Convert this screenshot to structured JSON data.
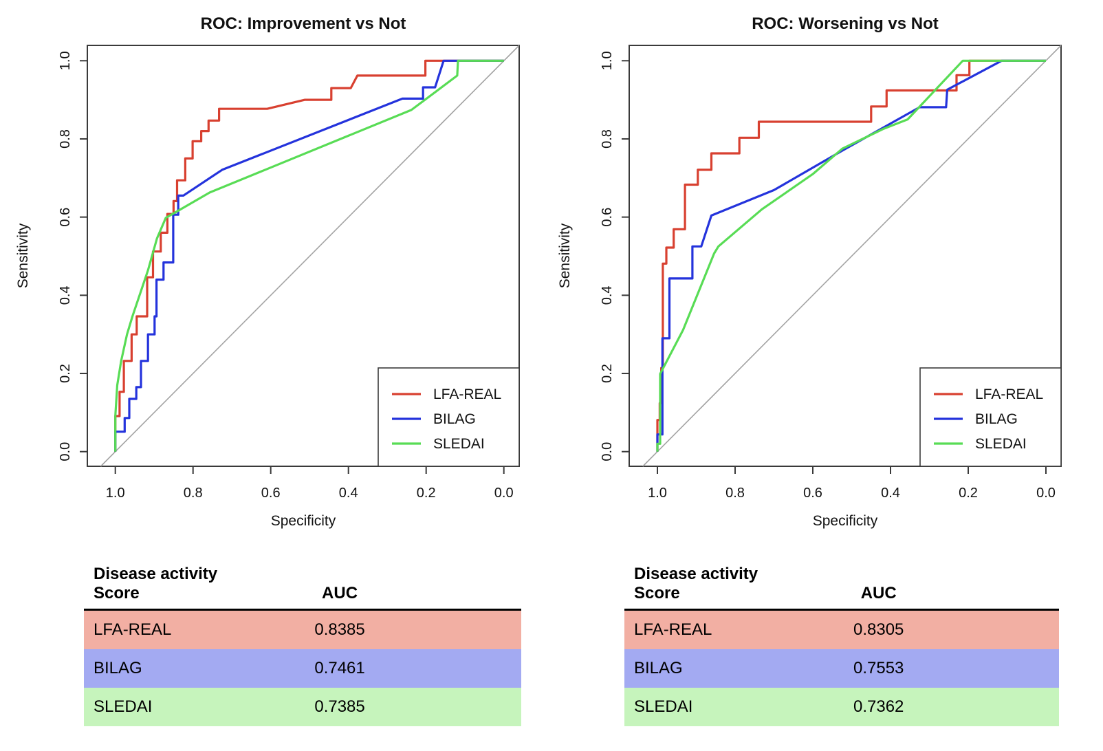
{
  "colors": {
    "lfa_real": "#d84030",
    "bilag": "#2433dc",
    "sledai": "#58dc55",
    "diagonal": "#a3a3a3",
    "axis": "#3a3a3a",
    "row_lfa": "#f2afa3",
    "row_bilag": "#a3aaf2",
    "row_sledai": "#c6f4bc"
  },
  "chart_data": [
    {
      "type": "line",
      "title": "ROC: Improvement vs Not",
      "xlabel": "Specificity",
      "ylabel": "Sensitivity",
      "xlim": [
        1.0,
        0.0
      ],
      "ylim": [
        0.0,
        1.0
      ],
      "x_reversed": true,
      "grid": false,
      "diagonal_reference": true,
      "xtick_labels": [
        "1.0",
        "0.8",
        "0.6",
        "0.4",
        "0.2",
        "0.0"
      ],
      "ytick_labels": [
        "0.0",
        "0.2",
        "0.4",
        "0.6",
        "0.8",
        "1.0"
      ],
      "legend": {
        "position": "bottom-right",
        "entries": [
          "LFA-REAL",
          "BILAG",
          "SLEDAI"
        ]
      },
      "series": [
        {
          "name": "LFA-REAL",
          "color_key": "lfa_real",
          "auc": 0.8385,
          "points": [
            [
              1.0,
              0
            ],
            [
              1.0,
              0.091
            ],
            [
              0.989,
              0.091
            ],
            [
              0.989,
              0.153
            ],
            [
              0.978,
              0.153
            ],
            [
              0.978,
              0.232
            ],
            [
              0.958,
              0.232
            ],
            [
              0.958,
              0.3
            ],
            [
              0.945,
              0.3
            ],
            [
              0.945,
              0.346
            ],
            [
              0.918,
              0.346
            ],
            [
              0.918,
              0.446
            ],
            [
              0.903,
              0.446
            ],
            [
              0.903,
              0.512
            ],
            [
              0.883,
              0.512
            ],
            [
              0.883,
              0.56
            ],
            [
              0.866,
              0.56
            ],
            [
              0.866,
              0.608
            ],
            [
              0.85,
              0.608
            ],
            [
              0.85,
              0.641
            ],
            [
              0.841,
              0.641
            ],
            [
              0.841,
              0.694
            ],
            [
              0.82,
              0.694
            ],
            [
              0.82,
              0.75
            ],
            [
              0.801,
              0.75
            ],
            [
              0.801,
              0.794
            ],
            [
              0.779,
              0.794
            ],
            [
              0.779,
              0.82
            ],
            [
              0.76,
              0.82
            ],
            [
              0.76,
              0.847
            ],
            [
              0.733,
              0.847
            ],
            [
              0.733,
              0.877
            ],
            [
              0.609,
              0.877
            ],
            [
              0.512,
              0.9
            ],
            [
              0.444,
              0.9
            ],
            [
              0.444,
              0.93
            ],
            [
              0.394,
              0.93
            ],
            [
              0.377,
              0.962
            ],
            [
              0.202,
              0.962
            ],
            [
              0.202,
              1.0
            ],
            [
              0.0,
              1.0
            ]
          ]
        },
        {
          "name": "BILAG",
          "color_key": "bilag",
          "auc": 0.7461,
          "points": [
            [
              1.0,
              0
            ],
            [
              1.0,
              0.051
            ],
            [
              0.976,
              0.051
            ],
            [
              0.976,
              0.086
            ],
            [
              0.964,
              0.086
            ],
            [
              0.964,
              0.135
            ],
            [
              0.946,
              0.135
            ],
            [
              0.946,
              0.165
            ],
            [
              0.934,
              0.165
            ],
            [
              0.934,
              0.232
            ],
            [
              0.916,
              0.232
            ],
            [
              0.916,
              0.3
            ],
            [
              0.899,
              0.3
            ],
            [
              0.899,
              0.346
            ],
            [
              0.894,
              0.346
            ],
            [
              0.894,
              0.44
            ],
            [
              0.876,
              0.44
            ],
            [
              0.876,
              0.484
            ],
            [
              0.851,
              0.484
            ],
            [
              0.851,
              0.606
            ],
            [
              0.838,
              0.606
            ],
            [
              0.838,
              0.655
            ],
            [
              0.825,
              0.655
            ],
            [
              0.725,
              0.721
            ],
            [
              0.261,
              0.903
            ],
            [
              0.208,
              0.903
            ],
            [
              0.208,
              0.932
            ],
            [
              0.177,
              0.932
            ],
            [
              0.155,
              1.0
            ],
            [
              0.0,
              1.0
            ]
          ]
        },
        {
          "name": "SLEDAI",
          "color_key": "sledai",
          "auc": 0.7385,
          "points": [
            [
              1.0,
              0
            ],
            [
              1.0,
              0.091
            ],
            [
              0.995,
              0.17
            ],
            [
              0.985,
              0.232
            ],
            [
              0.97,
              0.3
            ],
            [
              0.956,
              0.346
            ],
            [
              0.916,
              0.464
            ],
            [
              0.893,
              0.545
            ],
            [
              0.87,
              0.598
            ],
            [
              0.757,
              0.663
            ],
            [
              0.238,
              0.874
            ],
            [
              0.12,
              0.962
            ],
            [
              0.118,
              1.0
            ],
            [
              0.0,
              1.0
            ]
          ]
        }
      ]
    },
    {
      "type": "line",
      "title": "ROC: Worsening vs Not",
      "xlabel": "Specificity",
      "ylabel": "Sensitivity",
      "xlim": [
        1.0,
        0.0
      ],
      "ylim": [
        0.0,
        1.0
      ],
      "x_reversed": true,
      "grid": false,
      "diagonal_reference": true,
      "xtick_labels": [
        "1.0",
        "0.8",
        "0.6",
        "0.4",
        "0.2",
        "0.0"
      ],
      "ytick_labels": [
        "0.0",
        "0.2",
        "0.4",
        "0.6",
        "0.8",
        "1.0"
      ],
      "legend": {
        "position": "bottom-right",
        "entries": [
          "LFA-REAL",
          "BILAG",
          "SLEDAI"
        ]
      },
      "series": [
        {
          "name": "LFA-REAL",
          "color_key": "lfa_real",
          "auc": 0.8305,
          "points": [
            [
              1.0,
              0
            ],
            [
              1.0,
              0.081
            ],
            [
              0.994,
              0.081
            ],
            [
              0.994,
              0.124
            ],
            [
              0.99,
              0.124
            ],
            [
              0.99,
              0.214
            ],
            [
              0.986,
              0.214
            ],
            [
              0.986,
              0.481
            ],
            [
              0.977,
              0.481
            ],
            [
              0.977,
              0.522
            ],
            [
              0.958,
              0.522
            ],
            [
              0.958,
              0.569
            ],
            [
              0.929,
              0.569
            ],
            [
              0.929,
              0.683
            ],
            [
              0.896,
              0.683
            ],
            [
              0.896,
              0.721
            ],
            [
              0.861,
              0.721
            ],
            [
              0.861,
              0.763
            ],
            [
              0.789,
              0.763
            ],
            [
              0.789,
              0.803
            ],
            [
              0.739,
              0.803
            ],
            [
              0.739,
              0.844
            ],
            [
              0.45,
              0.844
            ],
            [
              0.45,
              0.883
            ],
            [
              0.41,
              0.883
            ],
            [
              0.41,
              0.924
            ],
            [
              0.23,
              0.924
            ],
            [
              0.23,
              0.963
            ],
            [
              0.197,
              0.963
            ],
            [
              0.197,
              1.0
            ],
            [
              0.0,
              1.0
            ]
          ]
        },
        {
          "name": "BILAG",
          "color_key": "bilag",
          "auc": 0.7553,
          "points": [
            [
              1.0,
              0
            ],
            [
              1.0,
              0.044
            ],
            [
              0.987,
              0.044
            ],
            [
              0.987,
              0.29
            ],
            [
              0.969,
              0.29
            ],
            [
              0.969,
              0.443
            ],
            [
              0.91,
              0.443
            ],
            [
              0.91,
              0.525
            ],
            [
              0.887,
              0.525
            ],
            [
              0.861,
              0.604
            ],
            [
              0.7,
              0.669
            ],
            [
              0.524,
              0.77
            ],
            [
              0.325,
              0.881
            ],
            [
              0.257,
              0.881
            ],
            [
              0.254,
              0.926
            ],
            [
              0.114,
              1.0
            ],
            [
              0.0,
              1.0
            ]
          ]
        },
        {
          "name": "SLEDAI",
          "color_key": "sledai",
          "auc": 0.7362,
          "points": [
            [
              1.0,
              0
            ],
            [
              1.0,
              0.02
            ],
            [
              0.993,
              0.02
            ],
            [
              0.993,
              0.199
            ],
            [
              0.934,
              0.311
            ],
            [
              0.854,
              0.507
            ],
            [
              0.843,
              0.525
            ],
            [
              0.731,
              0.62
            ],
            [
              0.6,
              0.71
            ],
            [
              0.524,
              0.775
            ],
            [
              0.42,
              0.825
            ],
            [
              0.356,
              0.85
            ],
            [
              0.214,
              1.0
            ],
            [
              0.0,
              1.0
            ]
          ]
        }
      ]
    }
  ],
  "tables": [
    {
      "headers": [
        "Disease activity Score",
        "AUC"
      ],
      "rows": [
        {
          "label": "LFA-REAL",
          "auc": "0.8385",
          "color_key": "row_lfa"
        },
        {
          "label": "BILAG",
          "auc": "0.7461",
          "color_key": "row_bilag"
        },
        {
          "label": "SLEDAI",
          "auc": "0.7385",
          "color_key": "row_sledai"
        }
      ]
    },
    {
      "headers": [
        "Disease activity Score",
        "AUC"
      ],
      "rows": [
        {
          "label": "LFA-REAL",
          "auc": "0.8305",
          "color_key": "row_lfa"
        },
        {
          "label": "BILAG",
          "auc": "0.7553",
          "color_key": "row_bilag"
        },
        {
          "label": "SLEDAI",
          "auc": "0.7362",
          "color_key": "row_sledai"
        }
      ]
    }
  ]
}
